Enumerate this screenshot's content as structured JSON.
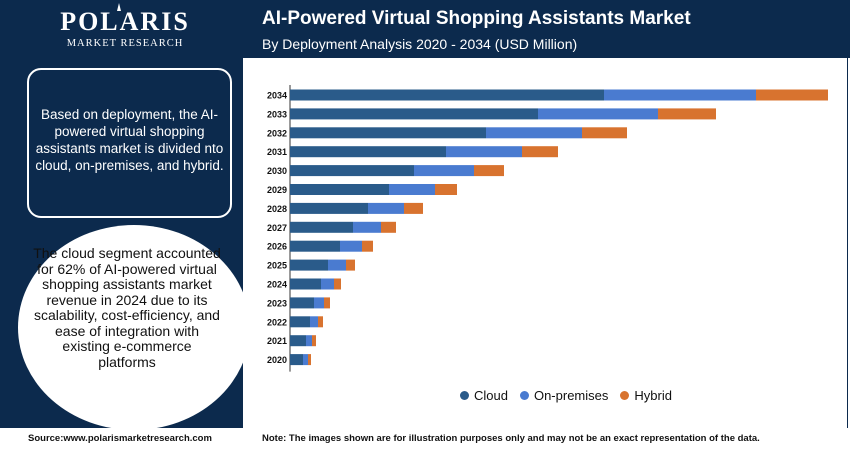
{
  "brand": {
    "name": "POLARIS",
    "sub": "MARKET RESEARCH"
  },
  "header": {
    "title": "AI-Powered Virtual Shopping Assistants Market",
    "subtitle": "By Deployment Analysis 2020 - 2034 (USD Million)"
  },
  "left": {
    "info": "Based on deployment, the AI-powered virtual shopping assistants market is divided nto cloud, on-premises, and hybrid.",
    "highlight": "The cloud segment accounted for 62% of AI-powered virtual shopping assistants market revenue in 2024 due to its scalability, cost-efficiency, and ease of integration with existing e-commerce platforms"
  },
  "footer": {
    "source": "Source:www.polarismarketresearch.com",
    "note": "Note: The images shown are for illustration purposes only and may not be an exact representation of the data."
  },
  "colors": {
    "navy": "#0c2a4d",
    "cloud": "#2a5b8a",
    "onprem": "#4a7bd0",
    "hybrid": "#d8732f"
  },
  "chart_data": {
    "type": "bar",
    "orientation": "horizontal",
    "stacked": true,
    "categories": [
      "2020",
      "2021",
      "2022",
      "2023",
      "2024",
      "2025",
      "2026",
      "2027",
      "2028",
      "2029",
      "2030",
      "2031",
      "2032",
      "2033",
      "2034"
    ],
    "series": [
      {
        "name": "Cloud",
        "color": "#2a5b8a",
        "values": [
          13,
          16,
          20,
          24,
          31,
          38,
          50,
          63,
          78,
          99,
          124,
          156,
          196,
          248,
          314
        ]
      },
      {
        "name": "On-premises",
        "color": "#4a7bd0",
        "values": [
          5,
          6,
          8,
          10,
          13,
          18,
          22,
          28,
          36,
          46,
          60,
          76,
          96,
          120,
          152
        ]
      },
      {
        "name": "Hybrid",
        "color": "#d8732f",
        "values": [
          3,
          4,
          5,
          6,
          7,
          9,
          11,
          15,
          19,
          22,
          30,
          36,
          45,
          58,
          72
        ]
      }
    ],
    "legend_position": "bottom",
    "grid": false
  }
}
